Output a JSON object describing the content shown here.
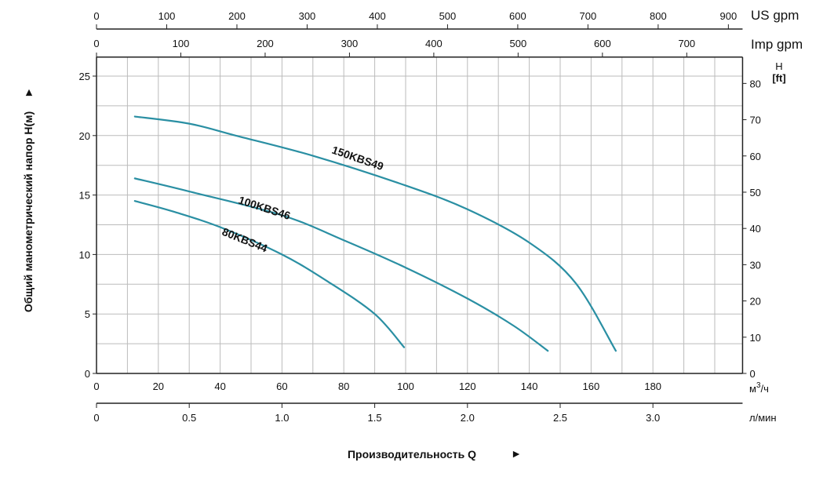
{
  "chart_data": {
    "type": "line",
    "xlabel": "Производительность Q",
    "xlabel_arrow": "►",
    "ylabel": "Общий манометрический напор H(м)",
    "ylabel_arrow": "►",
    "x_unit": "м³/ч",
    "x_unit_base": "м",
    "x_unit_sup": "3",
    "x_unit_tail": "/ч",
    "xlim": [
      0,
      209
    ],
    "ylim": [
      0,
      26.6
    ],
    "grid": true,
    "x_ticks": [
      "0",
      "20",
      "40",
      "60",
      "80",
      "100",
      "120",
      "140",
      "160",
      "180"
    ],
    "y_ticks": [
      "0",
      "5",
      "10",
      "15",
      "20",
      "25"
    ],
    "secondary_axes": {
      "us_gpm": {
        "unit": "US gpm",
        "ticks": [
          "0",
          "100",
          "200",
          "300",
          "400",
          "500",
          "600",
          "700",
          "800",
          "900"
        ]
      },
      "imp_gpm": {
        "unit": "Imp gpm",
        "ticks": [
          "0",
          "100",
          "200",
          "300",
          "400",
          "500",
          "600",
          "700"
        ]
      },
      "flow_min": {
        "unit": "л/мин",
        "ticks": [
          "0",
          "0.5",
          "1.0",
          "1.5",
          "2.0",
          "2.5",
          "3.0"
        ]
      },
      "head_ft": {
        "unit_top": "H",
        "unit_bottom": "[ft]",
        "ticks": [
          "0",
          "10",
          "20",
          "30",
          "40",
          "50",
          "60",
          "70",
          "80"
        ]
      }
    },
    "series": [
      {
        "name": "150KBS49",
        "color": "#2a8fa3",
        "x": [
          12.4,
          30,
          45,
          70,
          100,
          120,
          140,
          155,
          168
        ],
        "y": [
          21.6,
          21.0,
          20.0,
          18.3,
          15.8,
          13.8,
          11.0,
          7.6,
          1.9
        ]
      },
      {
        "name": "100KBS46",
        "color": "#2a8fa3",
        "x": [
          12.4,
          30,
          60,
          80,
          100,
          120,
          135,
          146
        ],
        "y": [
          16.4,
          15.3,
          13.3,
          11.2,
          8.9,
          6.3,
          4.0,
          1.9
        ]
      },
      {
        "name": "80KBS44",
        "color": "#2a8fa3",
        "x": [
          12.4,
          25,
          40,
          60,
          75,
          90,
          99.5
        ],
        "y": [
          14.5,
          13.6,
          12.3,
          10.0,
          7.7,
          5.0,
          2.2
        ]
      }
    ]
  }
}
